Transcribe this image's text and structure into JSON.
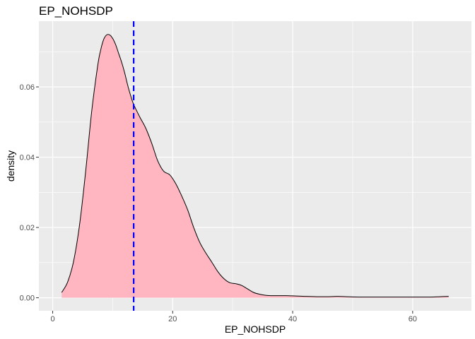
{
  "chart_data": {
    "type": "area",
    "title": "EP_NOHSDP",
    "xlabel": "EP_NOHSDP",
    "ylabel": "density",
    "xlim": [
      -2.3,
      69.8
    ],
    "ylim": [
      -0.0037,
      0.0787
    ],
    "x_ticks": [
      0,
      20,
      40,
      60
    ],
    "x_tick_labels": [
      "0",
      "20",
      "40",
      "60"
    ],
    "y_ticks": [
      0.0,
      0.02,
      0.04,
      0.06
    ],
    "y_tick_labels": [
      "0.00",
      "0.02",
      "0.04",
      "0.06"
    ],
    "grid": true,
    "legend": "none",
    "fill_color": "#ffb6c1",
    "line_color": "#000000",
    "panel_color": "#ebebeb",
    "grid_color": "#ffffff",
    "vline": {
      "x": 13.5,
      "color": "#0000ff",
      "style": "dashed"
    },
    "x": [
      1.5,
      2.5,
      3.5,
      4.5,
      5.5,
      6.5,
      7.5,
      8.0,
      8.5,
      9.0,
      9.5,
      10.0,
      10.5,
      11.0,
      11.5,
      12.0,
      12.5,
      13.0,
      13.5,
      14.5,
      15.5,
      16.5,
      17.5,
      18.5,
      19.5,
      20.5,
      21.5,
      22.5,
      23.5,
      24.5,
      25.5,
      26.5,
      27.5,
      28.5,
      29.5,
      30.5,
      31.5,
      32.5,
      33.5,
      34.5,
      35.5,
      36.5,
      37.5,
      39.0,
      40.5,
      42.0,
      44.0,
      46.0,
      47.5,
      49.0,
      51.0,
      54.0,
      57.0,
      60.0,
      63.0,
      64.5,
      66.0
    ],
    "y": [
      0.0015,
      0.0045,
      0.0105,
      0.021,
      0.036,
      0.053,
      0.066,
      0.0705,
      0.0735,
      0.0748,
      0.0748,
      0.0738,
      0.072,
      0.0695,
      0.067,
      0.064,
      0.0605,
      0.0575,
      0.055,
      0.0515,
      0.0483,
      0.044,
      0.039,
      0.036,
      0.035,
      0.0325,
      0.029,
      0.025,
      0.02,
      0.0158,
      0.0128,
      0.0102,
      0.0075,
      0.0055,
      0.0043,
      0.004,
      0.0035,
      0.0025,
      0.0015,
      0.001,
      0.0007,
      0.0006,
      0.0006,
      0.0006,
      0.0005,
      0.0004,
      0.0003,
      0.0003,
      0.0004,
      0.0003,
      0.0002,
      0.0002,
      0.0002,
      0.0002,
      0.0002,
      0.0003,
      0.0004
    ]
  }
}
